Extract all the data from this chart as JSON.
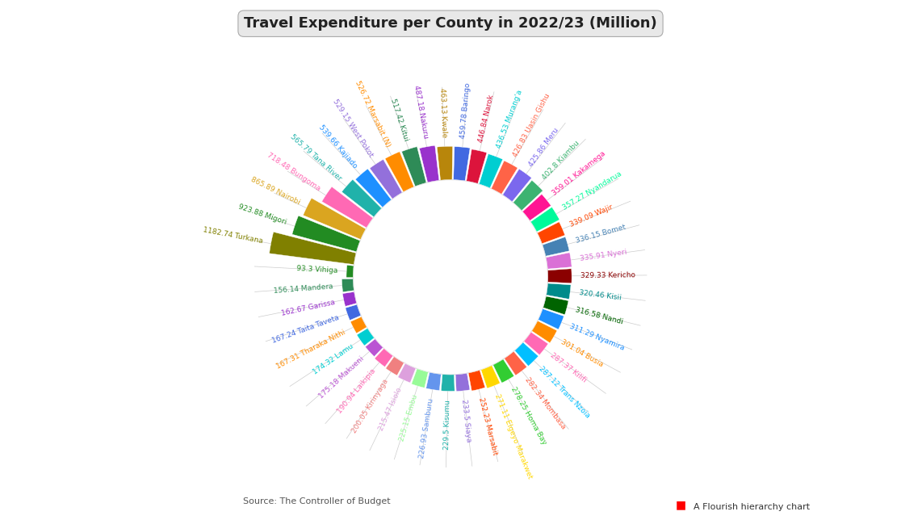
{
  "title": "Travel Expenditure per County in 2022/23 (Million)",
  "source": "Source: The Controller of Budget",
  "flourish_label": "A Flourish hierarchy chart",
  "counties": [
    {
      "name": "Kwale",
      "value": 463.13,
      "color": "#B8860B"
    },
    {
      "name": "Baringo",
      "value": 459.78,
      "color": "#4169E1"
    },
    {
      "name": "Narok",
      "value": 446.84,
      "color": "#DC143C"
    },
    {
      "name": "Murang'a",
      "value": 436.53,
      "color": "#00CED1"
    },
    {
      "name": "Uasin Gishu",
      "value": 426.83,
      "color": "#FF6347"
    },
    {
      "name": "Meru",
      "value": 425.86,
      "color": "#7B68EE"
    },
    {
      "name": "Kiambu",
      "value": 402.8,
      "color": "#3CB371"
    },
    {
      "name": "Kakamega",
      "value": 359.01,
      "color": "#FF1493"
    },
    {
      "name": "Nyandarua",
      "value": 357.27,
      "color": "#00FA9A"
    },
    {
      "name": "Wajir",
      "value": 339.09,
      "color": "#FF4500"
    },
    {
      "name": "Bomet",
      "value": 336.15,
      "color": "#4682B4"
    },
    {
      "name": "Nyeri",
      "value": 335.91,
      "color": "#DA70D6"
    },
    {
      "name": "Kericho",
      "value": 329.33,
      "color": "#8B0000"
    },
    {
      "name": "Kisii",
      "value": 320.46,
      "color": "#008B8B"
    },
    {
      "name": "Nandi",
      "value": 316.58,
      "color": "#006400"
    },
    {
      "name": "Nyamira",
      "value": 311.29,
      "color": "#1E90FF"
    },
    {
      "name": "Busia",
      "value": 301.04,
      "color": "#FF8C00"
    },
    {
      "name": "Kilifi",
      "value": 287.37,
      "color": "#FF69B4"
    },
    {
      "name": "Trans Nzoia",
      "value": 287.12,
      "color": "#00BFFF"
    },
    {
      "name": "Mombasa",
      "value": 282.34,
      "color": "#FF6347"
    },
    {
      "name": "Homa Bay",
      "value": 278.25,
      "color": "#32CD32"
    },
    {
      "name": "Elgeyo Marakwet",
      "value": 271.11,
      "color": "#FFD700"
    },
    {
      "name": "Marsabit",
      "value": 252.23,
      "color": "#FF4500"
    },
    {
      "name": "Siaya",
      "value": 233.5,
      "color": "#9370DB"
    },
    {
      "name": "Kisumu",
      "value": 229.5,
      "color": "#20B2AA"
    },
    {
      "name": "Samburu",
      "value": 226.93,
      "color": "#6495ED"
    },
    {
      "name": "Embu",
      "value": 225.15,
      "color": "#98FB98"
    },
    {
      "name": "Isiolo",
      "value": 215.47,
      "color": "#DDA0DD"
    },
    {
      "name": "Kirinyaga",
      "value": 200.05,
      "color": "#F08080"
    },
    {
      "name": "Laikipia",
      "value": 190.94,
      "color": "#FF69B4"
    },
    {
      "name": "Makueni",
      "value": 175.18,
      "color": "#BA55D3"
    },
    {
      "name": "Lamu",
      "value": 174.32,
      "color": "#00CED1"
    },
    {
      "name": "Tharaka Nithi",
      "value": 167.31,
      "color": "#FF8C00"
    },
    {
      "name": "Taita Taveta",
      "value": 167.24,
      "color": "#4169E1"
    },
    {
      "name": "Garissa",
      "value": 162.67,
      "color": "#9932CC"
    },
    {
      "name": "Mandera",
      "value": 156.14,
      "color": "#2E8B57"
    },
    {
      "name": "Vihiga",
      "value": 93.3,
      "color": "#228B22"
    },
    {
      "name": "Turkana",
      "value": 1182.74,
      "color": "#808000"
    },
    {
      "name": "Migori",
      "value": 923.88,
      "color": "#228B22"
    },
    {
      "name": "Nairobi",
      "value": 865.89,
      "color": "#DAA520"
    },
    {
      "name": "Bungoma",
      "value": 718.48,
      "color": "#FF69B4"
    },
    {
      "name": "Tana River",
      "value": 565.79,
      "color": "#20B2AA"
    },
    {
      "name": "Kajiado",
      "value": 539.66,
      "color": "#1E90FF"
    },
    {
      "name": "West Pokot",
      "value": 529.15,
      "color": "#9370DB"
    },
    {
      "name": "Marsabit (N)",
      "value": 526.72,
      "color": "#FF8C00"
    },
    {
      "name": "Kitui",
      "value": 517.42,
      "color": "#2E8B57"
    },
    {
      "name": "Nakuru",
      "value": 487.18,
      "color": "#9932CC"
    }
  ],
  "background_color": "#ffffff",
  "title_fontsize": 13,
  "label_fontsize": 6.5
}
